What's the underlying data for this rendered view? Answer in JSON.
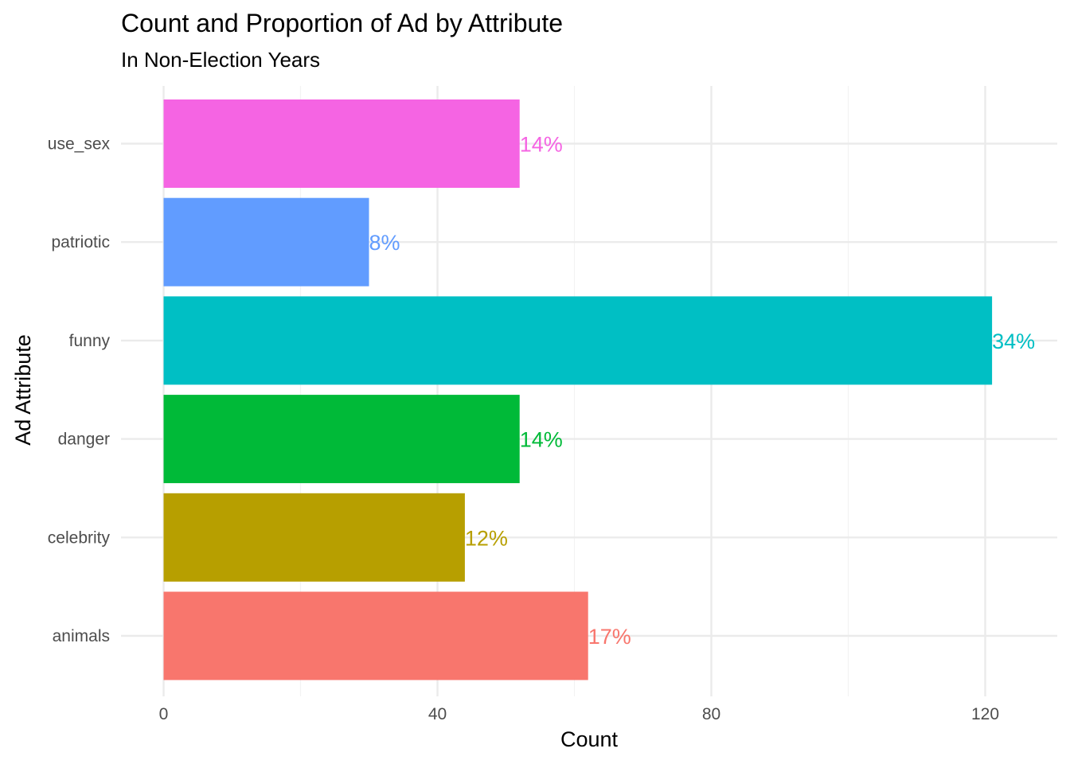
{
  "chart_data": {
    "type": "bar",
    "orientation": "horizontal",
    "title": "Count and Proportion of Ad by Attribute",
    "subtitle": "In Non-Election Years",
    "xlabel": "Count",
    "ylabel": "Ad Attribute",
    "xlim": [
      0,
      128
    ],
    "x_ticks": [
      0,
      40,
      80,
      120
    ],
    "x_tick_labels": [
      "0",
      "40",
      "80",
      "120"
    ],
    "grid": true,
    "legend": "none",
    "categories": [
      "animals",
      "celebrity",
      "danger",
      "funny",
      "patriotic",
      "use_sex"
    ],
    "values": [
      62,
      44,
      52,
      121,
      30,
      52
    ],
    "labels": [
      "17%",
      "12%",
      "14%",
      "34%",
      "8%",
      "14%"
    ],
    "colors": [
      "#F8766D",
      "#B79F00",
      "#00BA38",
      "#00BFC4",
      "#619CFF",
      "#F564E3"
    ]
  }
}
